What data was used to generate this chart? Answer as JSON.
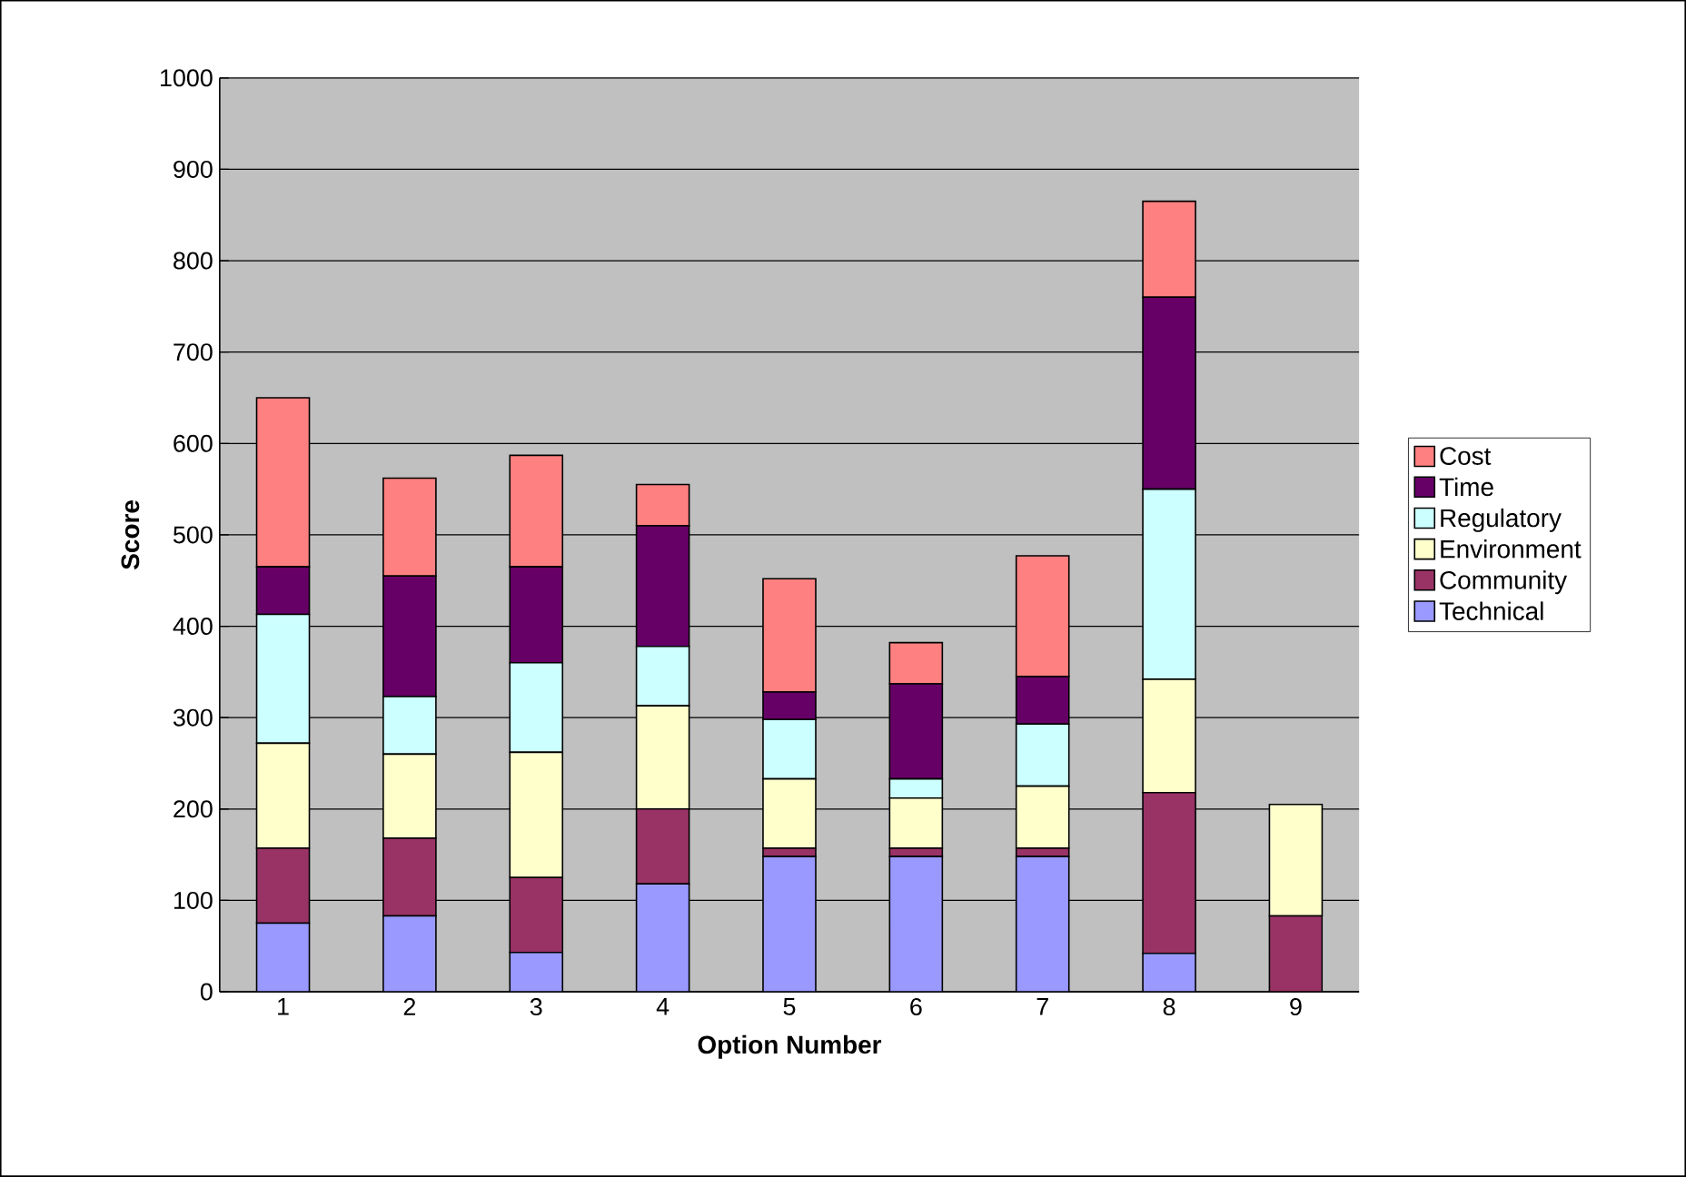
{
  "chart_data": {
    "type": "bar",
    "stacked": true,
    "xlabel": "Option Number",
    "ylabel": "Score",
    "categories": [
      "1",
      "2",
      "3",
      "4",
      "5",
      "6",
      "7",
      "8",
      "9"
    ],
    "series": [
      {
        "name": "Technical",
        "color": "#9999ff",
        "values": [
          75,
          83,
          43,
          118,
          148,
          148,
          148,
          42,
          0
        ]
      },
      {
        "name": "Community",
        "color": "#993366",
        "values": [
          82,
          85,
          82,
          82,
          9,
          9,
          9,
          176,
          83
        ]
      },
      {
        "name": "Environment",
        "color": "#ffffcc",
        "values": [
          115,
          92,
          137,
          113,
          76,
          55,
          68,
          124,
          122
        ]
      },
      {
        "name": "Regulatory",
        "color": "#ccffff",
        "values": [
          141,
          63,
          98,
          65,
          65,
          21,
          68,
          208,
          0
        ]
      },
      {
        "name": "Time",
        "color": "#660066",
        "values": [
          52,
          132,
          105,
          132,
          30,
          104,
          52,
          210,
          0
        ]
      },
      {
        "name": "Cost",
        "color": "#ff8080",
        "values": [
          185,
          107,
          122,
          45,
          124,
          45,
          132,
          105,
          0
        ]
      }
    ],
    "ylim": [
      0,
      1000
    ],
    "yticks": [
      0,
      100,
      200,
      300,
      400,
      500,
      600,
      700,
      800,
      900,
      1000
    ],
    "grid": "y",
    "legend": "right"
  }
}
